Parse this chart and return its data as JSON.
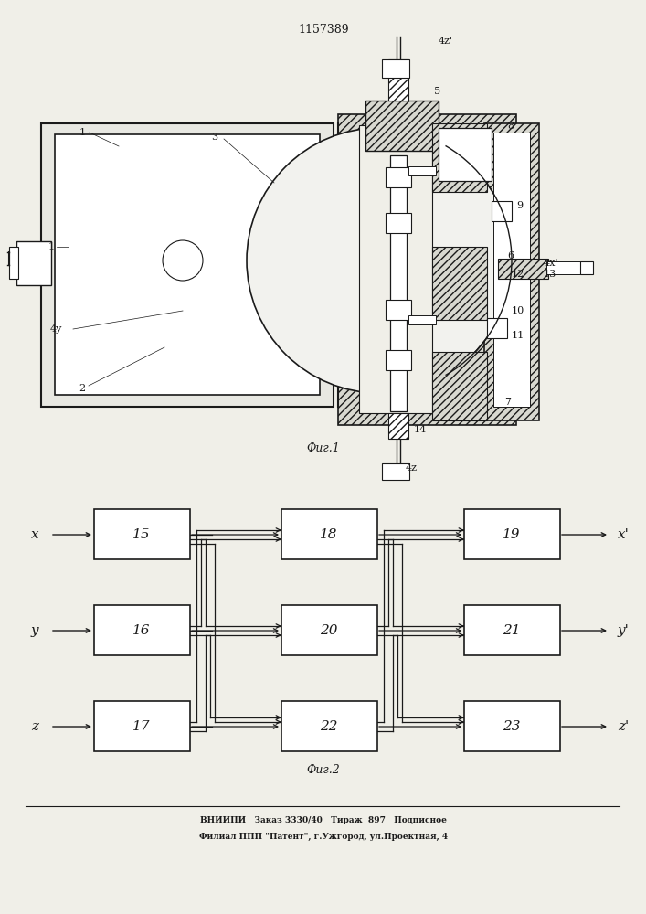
{
  "patent_number": "1157389",
  "fig1_label": "Фиг.1",
  "fig2_label": "Фиг.2",
  "footer_line1": "ВНИИПИ   Заказ 3330/40   Тираж  897   Подписное",
  "footer_line2": "Филиал ППП \"Патент\", г.Ужгород, ул.Проектная, 4",
  "bg_color": "#f0efe8",
  "line_color": "#1a1a1a"
}
